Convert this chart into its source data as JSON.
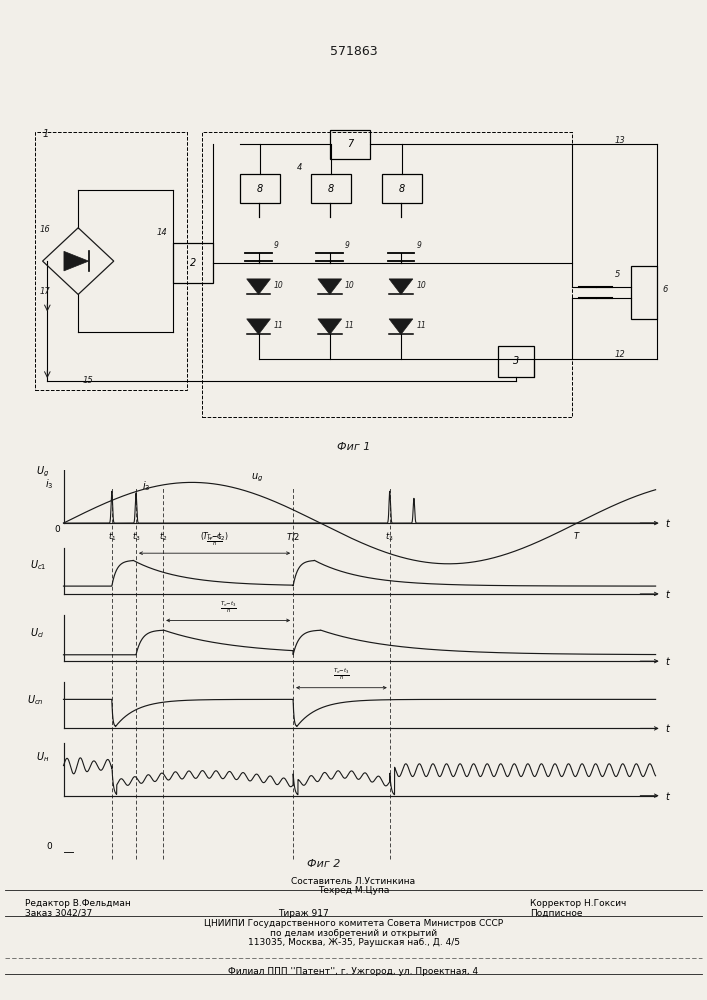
{
  "patent_number": "571863",
  "fig1_caption": "Фиг 1",
  "fig2_caption": "Фиг 2",
  "footer_sostavitel": "Составитель Л.Устинкина",
  "footer_tekhred": "Техред М.Цупа",
  "footer_editor": "Редактор В.Фельдман",
  "footer_corrector": "Корректор Н.Гоксич",
  "footer_order": "Заказ 3042/37",
  "footer_tirazh": "Тираж 917",
  "footer_podp": "Подписное",
  "footer_org1": "ЦНИИПИ Государственного комитета Совета Министров СССР",
  "footer_org2": "по делам изобретений и открытий",
  "footer_addr": "113035, Москва, Ж-35, Раушская наб., Д. 4/5",
  "footer_filial": "Филиал ППП ''Патент'', г. Ужгород, ул. Проектная, 4",
  "bg_color": "#f2efe9",
  "line_color": "#1a1a1a"
}
